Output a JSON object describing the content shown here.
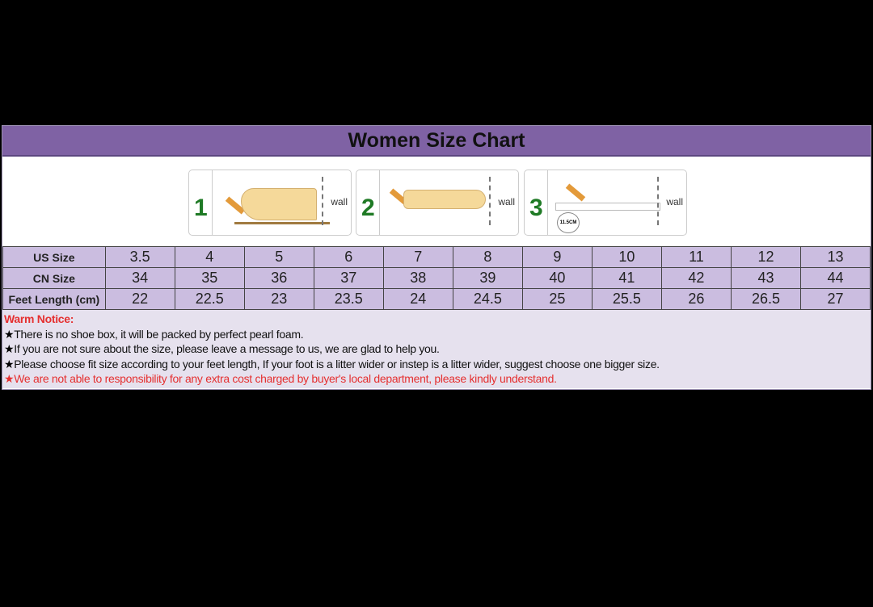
{
  "title": "Women Size Chart",
  "steps": [
    {
      "number": "1",
      "wall": "wall"
    },
    {
      "number": "2",
      "wall": "wall"
    },
    {
      "number": "3",
      "wall": "wall",
      "measure": "11.5CM"
    }
  ],
  "rows": [
    {
      "label": "US Size",
      "values": [
        "3.5",
        "4",
        "5",
        "6",
        "7",
        "8",
        "9",
        "10",
        "11",
        "12",
        "13"
      ]
    },
    {
      "label": "CN Size",
      "values": [
        "34",
        "35",
        "36",
        "37",
        "38",
        "39",
        "40",
        "41",
        "42",
        "43",
        "44"
      ]
    },
    {
      "label": "Feet Length (cm)",
      "values": [
        "22",
        "22.5",
        "23",
        "23.5",
        "24",
        "24.5",
        "25",
        "25.5",
        "26",
        "26.5",
        "27"
      ]
    }
  ],
  "notice": {
    "heading": "Warm Notice:",
    "star": "★",
    "items": [
      {
        "text": "There is no shoe box, it will be packed by perfect pearl foam.",
        "color": "#000000"
      },
      {
        "text": "If you are not sure about the size, please leave a message to us, we are glad to help you.",
        "color": "#000000"
      },
      {
        "text": "Please choose fit size according to your feet length, If your foot is a litter wider or instep is a litter wider, suggest choose one bigger size.",
        "color": "#000000"
      },
      {
        "text": "We are not able to responsibility for any extra cost charged by buyer's local department, please kindly understand.",
        "color": "#e53030"
      }
    ]
  },
  "colors": {
    "header": "#7f62a4",
    "table": "#cbbde0",
    "notice_bg": "#e6e1ee",
    "warning": "#e53030"
  }
}
